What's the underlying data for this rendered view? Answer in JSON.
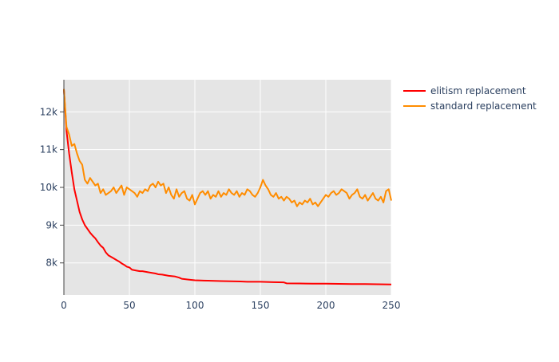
{
  "chart_data": {
    "type": "line",
    "title": "",
    "xlabel": "",
    "ylabel": "",
    "xlim": [
      0,
      250
    ],
    "ylim": [
      7150,
      12850
    ],
    "grid": true,
    "legend": "top-right",
    "xticks": [
      0,
      50,
      100,
      150,
      200,
      250
    ],
    "xtick_labels": [
      "0",
      "50",
      "100",
      "150",
      "200",
      "250"
    ],
    "yticks": [
      8000,
      9000,
      10000,
      11000,
      12000
    ],
    "ytick_labels": [
      "8k",
      "9k",
      "10k",
      "11k",
      "12k"
    ],
    "colors": {
      "plot_bg": "#e5e5e5",
      "grid": "#ffffff",
      "elitism": "#ff0000",
      "standard": "#ff8c00"
    },
    "series": [
      {
        "name": "elitism replacement",
        "color": "#ff0000",
        "x": [
          0,
          2,
          4,
          6,
          8,
          10,
          12,
          14,
          16,
          18,
          20,
          22,
          24,
          26,
          28,
          30,
          32,
          34,
          36,
          38,
          40,
          42,
          44,
          46,
          48,
          50,
          52,
          55,
          58,
          60,
          65,
          70,
          72,
          75,
          80,
          85,
          88,
          90,
          95,
          100,
          110,
          120,
          135,
          140,
          150,
          160,
          168,
          170,
          180,
          190,
          200,
          210,
          220,
          230,
          240,
          250
        ],
        "y": [
          12600,
          11500,
          10900,
          10400,
          9950,
          9650,
          9350,
          9150,
          9000,
          8900,
          8800,
          8720,
          8650,
          8550,
          8460,
          8400,
          8280,
          8200,
          8160,
          8120,
          8080,
          8040,
          7990,
          7950,
          7900,
          7880,
          7820,
          7800,
          7780,
          7780,
          7750,
          7720,
          7700,
          7690,
          7660,
          7640,
          7610,
          7580,
          7560,
          7540,
          7530,
          7520,
          7510,
          7500,
          7500,
          7490,
          7485,
          7460,
          7455,
          7450,
          7450,
          7445,
          7440,
          7440,
          7435,
          7430
        ]
      },
      {
        "name": "standard replacement",
        "color": "#ff8c00",
        "x": [
          0,
          2,
          4,
          6,
          8,
          10,
          12,
          14,
          16,
          18,
          20,
          22,
          24,
          26,
          28,
          30,
          32,
          34,
          36,
          38,
          40,
          42,
          44,
          46,
          48,
          50,
          52,
          54,
          56,
          58,
          60,
          62,
          64,
          66,
          68,
          70,
          72,
          74,
          76,
          78,
          80,
          82,
          84,
          86,
          88,
          90,
          92,
          94,
          96,
          98,
          100,
          102,
          104,
          106,
          108,
          110,
          112,
          114,
          116,
          118,
          120,
          122,
          124,
          126,
          128,
          130,
          132,
          134,
          136,
          138,
          140,
          142,
          144,
          146,
          148,
          150,
          152,
          154,
          156,
          158,
          160,
          162,
          164,
          166,
          168,
          170,
          172,
          174,
          176,
          178,
          180,
          182,
          184,
          186,
          188,
          190,
          192,
          194,
          196,
          198,
          200,
          202,
          204,
          206,
          208,
          210,
          212,
          214,
          216,
          218,
          220,
          222,
          224,
          226,
          228,
          230,
          232,
          234,
          236,
          238,
          240,
          242,
          244,
          246,
          248,
          250
        ],
        "y": [
          12600,
          11600,
          11400,
          11100,
          11150,
          10900,
          10700,
          10600,
          10200,
          10100,
          10250,
          10150,
          10050,
          10100,
          9850,
          9950,
          9800,
          9850,
          9900,
          10000,
          9850,
          9950,
          10050,
          9800,
          10000,
          9950,
          9900,
          9850,
          9750,
          9900,
          9850,
          9950,
          9900,
          10050,
          10100,
          10000,
          10150,
          10050,
          10100,
          9850,
          10000,
          9800,
          9700,
          9950,
          9750,
          9850,
          9900,
          9700,
          9650,
          9800,
          9550,
          9700,
          9850,
          9900,
          9800,
          9900,
          9700,
          9800,
          9750,
          9900,
          9750,
          9850,
          9800,
          9950,
          9850,
          9800,
          9900,
          9750,
          9850,
          9800,
          9950,
          9900,
          9800,
          9750,
          9850,
          10000,
          10200,
          10050,
          9950,
          9800,
          9750,
          9850,
          9700,
          9750,
          9650,
          9750,
          9700,
          9600,
          9650,
          9500,
          9600,
          9550,
          9650,
          9600,
          9700,
          9550,
          9600,
          9500,
          9600,
          9700,
          9800,
          9750,
          9850,
          9900,
          9800,
          9850,
          9950,
          9900,
          9850,
          9700,
          9800,
          9850,
          9950,
          9750,
          9700,
          9800,
          9650,
          9750,
          9850,
          9700,
          9650,
          9750,
          9600,
          9900,
          9950,
          9650
        ]
      }
    ]
  }
}
